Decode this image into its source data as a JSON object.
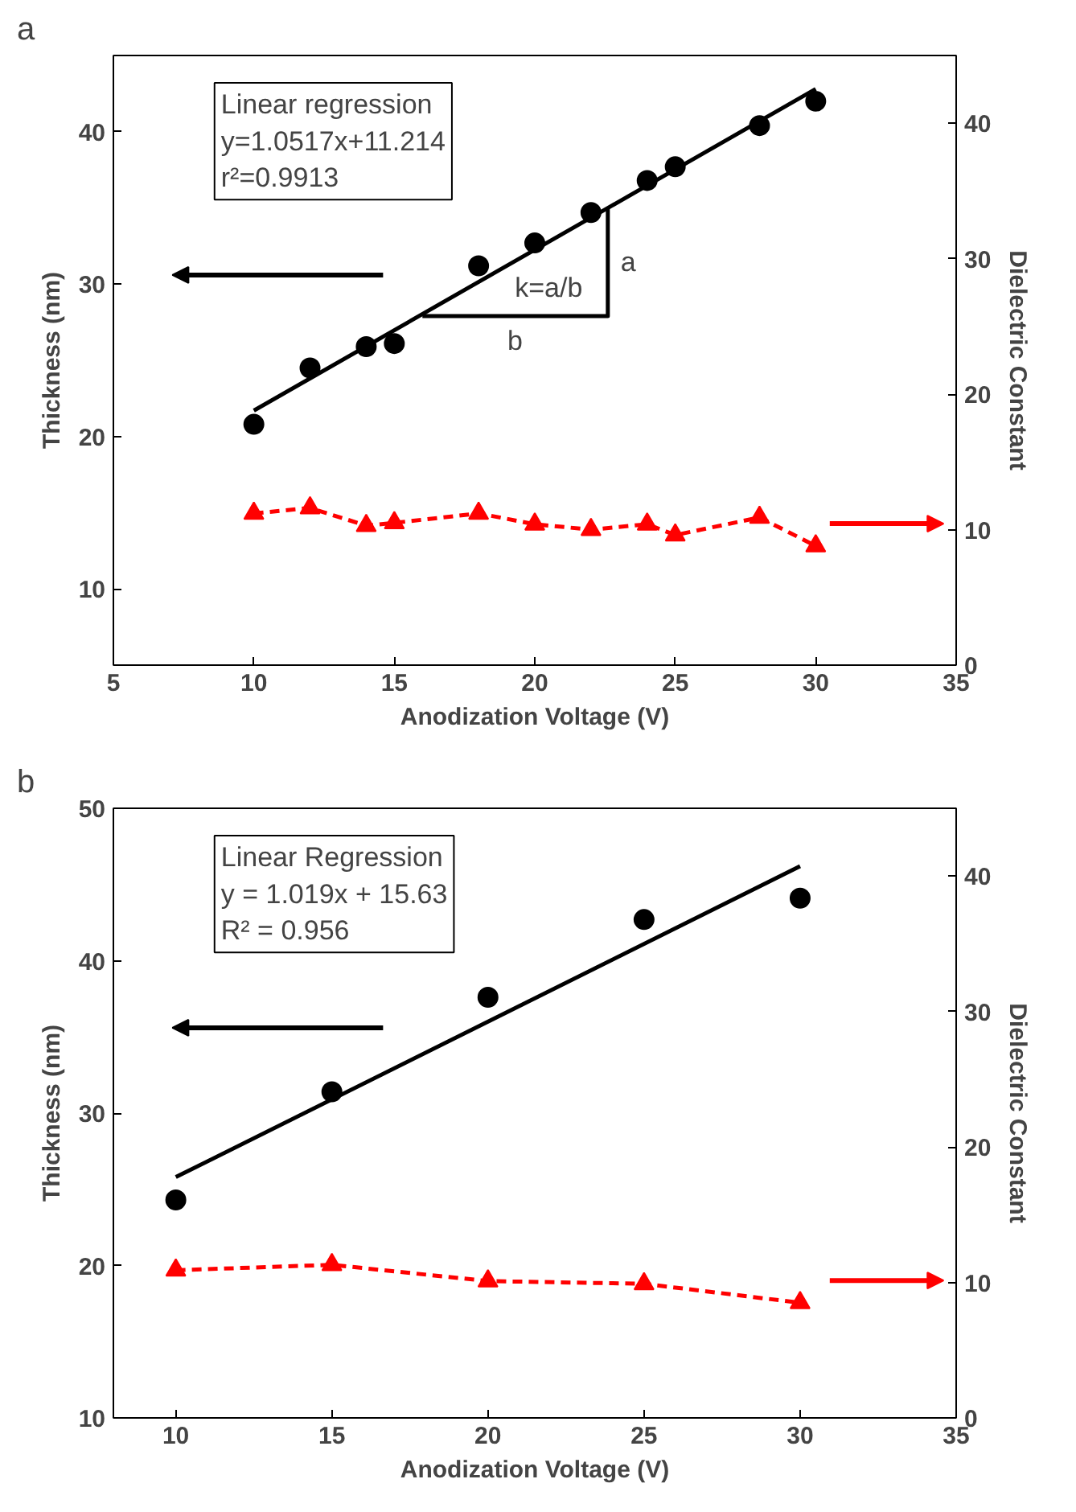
{
  "chart_data": [
    {
      "type": "scatter",
      "title": "a",
      "xlabel": "Anodization Voltage (V)",
      "ylabel": "Thickness (nm)",
      "y2label": "Dielectric Constant",
      "xlim": [
        5,
        35
      ],
      "xticks": [
        5,
        10,
        15,
        20,
        25,
        30,
        35
      ],
      "ylim": [
        5,
        45
      ],
      "yticks": [
        10,
        20,
        30,
        40
      ],
      "y2lim": [
        0,
        45
      ],
      "y2ticks": [
        0,
        10,
        20,
        30,
        40
      ],
      "series": [
        {
          "type": "line",
          "color": "#000000",
          "x": [
            10,
            30
          ],
          "values": [
            21.7,
            42.8
          ],
          "marker": "none",
          "line_style": "solid"
        },
        {
          "color": "#000000",
          "x": [
            10,
            12,
            14,
            15,
            18,
            20,
            22,
            24,
            25,
            28,
            30
          ],
          "values": [
            20.8,
            24.5,
            25.9,
            26.1,
            31.2,
            32.7,
            34.7,
            36.8,
            37.7,
            40.4,
            42.0
          ],
          "marker": "circle"
        },
        {
          "type": "line",
          "color": "#ff0000",
          "axis": "y2",
          "x": [
            10,
            12,
            14,
            15,
            18,
            20,
            22,
            24,
            25,
            28,
            30
          ],
          "values": [
            11.2,
            11.6,
            10.3,
            10.5,
            11.2,
            10.4,
            10.0,
            10.4,
            9.6,
            10.9,
            8.8
          ],
          "marker": "triangle",
          "line_style": "dashed"
        },
        {
          "type": "line",
          "color": "#000000",
          "x": [
            16.0,
            22.6,
            22.6
          ],
          "values": [
            27.9,
            27.9,
            35.0
          ],
          "marker": "none",
          "line_style": "solid"
        }
      ],
      "annotations": [
        "Linear regression",
        "y=1.0517x+11.214",
        "r²=0.9913",
        "k=a/b",
        "a",
        "b"
      ]
    },
    {
      "type": "scatter",
      "title": "b",
      "xlabel": "Anodization Voltage (V)",
      "ylabel": "Thickness (nm)",
      "y2label": "Dielectric Constant",
      "xlim": [
        8,
        35
      ],
      "xticks": [
        10,
        15,
        20,
        25,
        30,
        35
      ],
      "ylim": [
        10,
        50
      ],
      "yticks": [
        10,
        20,
        30,
        40,
        50
      ],
      "y2lim": [
        0,
        45
      ],
      "y2ticks": [
        0,
        10,
        20,
        30,
        40
      ],
      "series": [
        {
          "type": "line",
          "color": "#000000",
          "x": [
            10,
            30
          ],
          "values": [
            25.8,
            46.2
          ],
          "marker": "none",
          "line_style": "solid"
        },
        {
          "color": "#000000",
          "x": [
            10,
            15,
            20,
            25,
            30
          ],
          "values": [
            24.3,
            31.4,
            37.6,
            42.7,
            44.1
          ],
          "marker": "circle"
        },
        {
          "type": "line",
          "color": "#ff0000",
          "axis": "y2",
          "x": [
            10,
            15,
            20,
            25,
            30
          ],
          "values": [
            10.9,
            11.3,
            10.1,
            9.9,
            8.5
          ],
          "marker": "triangle",
          "line_style": "dashed"
        }
      ],
      "annotations": [
        "Linear Regression",
        "y = 1.019x + 15.63",
        "R² = 0.956"
      ]
    }
  ]
}
